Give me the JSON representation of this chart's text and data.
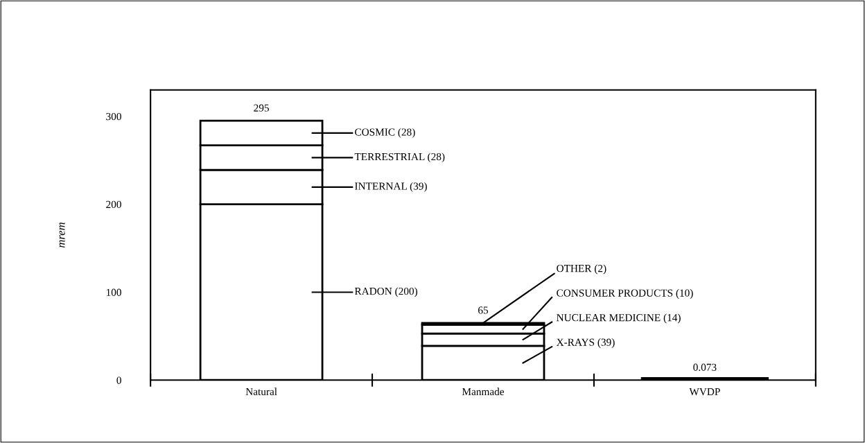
{
  "chart_data": {
    "type": "bar",
    "stacked": true,
    "ylabel": "mrem",
    "categories": [
      "Natural",
      "Manmade",
      "WVDP"
    ],
    "series": [
      {
        "colors": [
          "#ffffff",
          "#ffffff",
          "#000000"
        ],
        "values": [
          200,
          39,
          0.073
        ]
      },
      {
        "color": "#ffffff",
        "values": [
          39,
          14,
          null
        ]
      },
      {
        "color": "#ffffff",
        "values": [
          28,
          10,
          null
        ]
      },
      {
        "color": "#ffffff",
        "values": [
          28,
          2,
          null
        ]
      }
    ],
    "totals": [
      "295",
      "65",
      "0.073"
    ],
    "ylim": [
      0,
      330
    ],
    "yticks": [
      0,
      100,
      200,
      300
    ],
    "grid": false,
    "annotations": [
      "COSMIC (28)",
      "TERRESTRIAL (28)",
      "INTERNAL (39)",
      "RADON (200)",
      {
        "text": "OTHER (2)",
        "x": "Manmade",
        "y": 65
      },
      "CONSUMER PRODUCTS (10)",
      "NUCLEAR MEDICINE (14)",
      "X-RAYS (39)"
    ]
  }
}
